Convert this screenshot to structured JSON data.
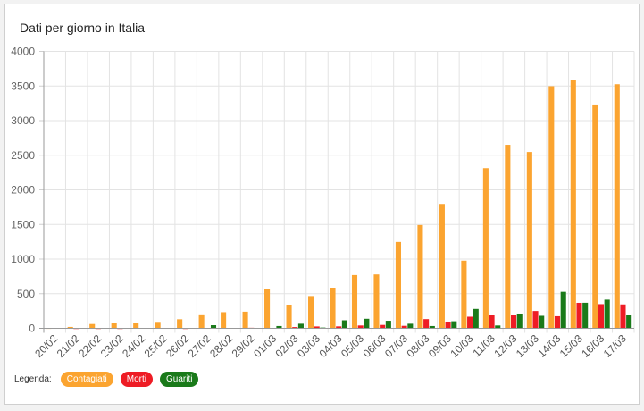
{
  "card": {
    "title": "Dati per giorno in Italia"
  },
  "legend": {
    "label": "Legenda:",
    "items": [
      {
        "name": "Contagiati",
        "color": "#FBA430"
      },
      {
        "name": "Morti",
        "color": "#EE1C25"
      },
      {
        "name": "Guariti",
        "color": "#1A7A1A"
      }
    ]
  },
  "chart_data": {
    "type": "bar",
    "title": "Dati per giorno in Italia",
    "xlabel": "",
    "ylabel": "",
    "ylim": [
      0,
      4000
    ],
    "yticks": [
      0,
      500,
      1000,
      1500,
      2000,
      2500,
      3000,
      3500,
      4000
    ],
    "grid": true,
    "legend_position": "bottom-left",
    "categories": [
      "20/02",
      "21/02",
      "22/02",
      "23/02",
      "24/02",
      "25/02",
      "26/02",
      "27/02",
      "28/02",
      "29/02",
      "01/03",
      "02/03",
      "03/03",
      "04/03",
      "05/03",
      "06/03",
      "07/03",
      "08/03",
      "09/03",
      "10/03",
      "11/03",
      "12/03",
      "13/03",
      "14/03",
      "15/03",
      "16/03",
      "17/03"
    ],
    "series": [
      {
        "name": "Contagiati",
        "color": "#FBA430",
        "values": [
          3,
          20,
          62,
          77,
          74,
          93,
          131,
          202,
          233,
          240,
          566,
          342,
          466,
          587,
          769,
          778,
          1247,
          1492,
          1797,
          977,
          2313,
          2651,
          2547,
          3497,
          3590,
          3233,
          3526
        ]
      },
      {
        "name": "Morti",
        "color": "#EE1C25",
        "values": [
          0,
          1,
          1,
          1,
          4,
          4,
          1,
          5,
          4,
          8,
          5,
          18,
          27,
          28,
          41,
          49,
          36,
          133,
          97,
          168,
          196,
          189,
          250,
          175,
          368,
          349,
          345
        ]
      },
      {
        "name": "Guariti",
        "color": "#1A7A1A",
        "values": [
          0,
          0,
          0,
          0,
          0,
          0,
          0,
          45,
          0,
          4,
          33,
          66,
          11,
          116,
          138,
          109,
          66,
          33,
          102,
          280,
          41,
          213,
          181,
          527,
          369,
          414,
          192
        ]
      }
    ]
  }
}
